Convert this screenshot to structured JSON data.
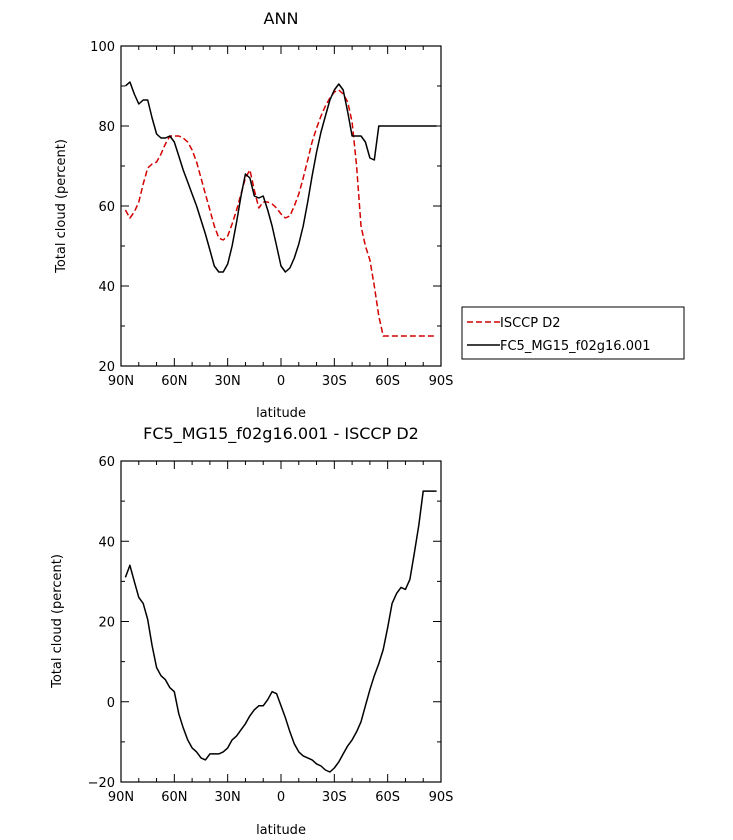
{
  "chart_data": [
    {
      "type": "line",
      "title": "ANN",
      "xlabel": "latitude",
      "ylabel": "Total cloud (percent)",
      "xlim": [
        90,
        -90
      ],
      "ylim": [
        20,
        100
      ],
      "xticks": [
        90,
        60,
        30,
        0,
        -30,
        -60,
        -90
      ],
      "xtick_labels": [
        "90N",
        "60N",
        "30N",
        "0",
        "30S",
        "60S",
        "90S"
      ],
      "yticks": [
        20,
        40,
        60,
        80,
        100
      ],
      "legend": {
        "placement": "right-outside"
      },
      "series": [
        {
          "name": "ISCCP D2",
          "color": "#d40000",
          "dash": true,
          "x": [
            87.5,
            85,
            82.5,
            80,
            77.5,
            75,
            72.5,
            70,
            67.5,
            65,
            62.5,
            60,
            57.5,
            55,
            52.5,
            50,
            47.5,
            45,
            42.5,
            40,
            37.5,
            35,
            32.5,
            30,
            27.5,
            25,
            22.5,
            20,
            17.5,
            15,
            12.5,
            10,
            7.5,
            5,
            2.5,
            0,
            -2.5,
            -5,
            -7.5,
            -10,
            -12.5,
            -15,
            -17.5,
            -20,
            -22.5,
            -25,
            -27.5,
            -30,
            -32.5,
            -35,
            -37.5,
            -40,
            -42.5,
            -45,
            -47.5,
            -50,
            -52.5,
            -55,
            -57.5,
            -60,
            -62.5,
            -65,
            -67.5,
            -70,
            -72.5,
            -75,
            -77.5,
            -80,
            -82.5,
            -85,
            -87.5
          ],
          "values": [
            59,
            57,
            58.5,
            61,
            65.5,
            69.5,
            70.5,
            71,
            73,
            75.5,
            77.5,
            77.5,
            77.5,
            77,
            76,
            74,
            71,
            67,
            63,
            59,
            55,
            52,
            51.5,
            52.5,
            55.5,
            59,
            63,
            67,
            69,
            64,
            59.5,
            61,
            61,
            60.5,
            59.5,
            58,
            57,
            57.5,
            60,
            63,
            67,
            71.5,
            76,
            79.5,
            82.5,
            85,
            87,
            88.5,
            89,
            88,
            86,
            81,
            70,
            55,
            50,
            46.5,
            40,
            32.5,
            27.5,
            27.5,
            27.5,
            27.5,
            27.5,
            27.5,
            27.5,
            27.5,
            27.5,
            27.5,
            27.5,
            27.5,
            27.5
          ]
        },
        {
          "name": "FC5_MG15_f02g16.001",
          "color": "#000000",
          "dash": false,
          "x": [
            87.5,
            85,
            82.5,
            80,
            77.5,
            75,
            72.5,
            70,
            67.5,
            65,
            62.5,
            60,
            57.5,
            55,
            52.5,
            50,
            47.5,
            45,
            42.5,
            40,
            37.5,
            35,
            32.5,
            30,
            27.5,
            25,
            22.5,
            20,
            17.5,
            15,
            12.5,
            10,
            7.5,
            5,
            2.5,
            0,
            -2.5,
            -5,
            -7.5,
            -10,
            -12.5,
            -15,
            -17.5,
            -20,
            -22.5,
            -25,
            -27.5,
            -30,
            -32.5,
            -35,
            -37.5,
            -40,
            -42.5,
            -45,
            -47.5,
            -50,
            -52.5,
            -55,
            -57.5,
            -60,
            -62.5,
            -65,
            -67.5,
            -70,
            -72.5,
            -75,
            -77.5,
            -80,
            -82.5,
            -85,
            -87.5
          ],
          "values": [
            90,
            91,
            88,
            85.5,
            86.5,
            86.5,
            82,
            78,
            77,
            77,
            77.5,
            76,
            72.5,
            69,
            66,
            63,
            60,
            56.5,
            53,
            49,
            45,
            43.5,
            43.5,
            45.5,
            50,
            56,
            62.5,
            68,
            67,
            62.5,
            62,
            62.5,
            59,
            55,
            50,
            45,
            43.5,
            44.5,
            47,
            50.5,
            55,
            61,
            67.5,
            73.5,
            78.5,
            82.5,
            86.5,
            89,
            90.5,
            89,
            83.5,
            77.5,
            77.5,
            77.5,
            76,
            72,
            71.5,
            80,
            80,
            80,
            80,
            80,
            80,
            80,
            80,
            80,
            80,
            80,
            80,
            80,
            80
          ]
        }
      ]
    },
    {
      "type": "line",
      "title": "FC5_MG15_f02g16.001 - ISCCP D2",
      "xlabel": "latitude",
      "ylabel": "Total cloud (percent)",
      "xlim": [
        90,
        -90
      ],
      "ylim": [
        -20,
        60
      ],
      "xticks": [
        90,
        60,
        30,
        0,
        -30,
        -60,
        -90
      ],
      "xtick_labels": [
        "90N",
        "60N",
        "30N",
        "0",
        "30S",
        "60S",
        "90S"
      ],
      "yticks": [
        -20,
        0,
        20,
        40,
        60
      ],
      "series": [
        {
          "color": "#000000",
          "dash": false,
          "x": [
            87.5,
            85,
            82.5,
            80,
            77.5,
            75,
            72.5,
            70,
            67.5,
            65,
            62.5,
            60,
            57.5,
            55,
            52.5,
            50,
            47.5,
            45,
            42.5,
            40,
            37.5,
            35,
            32.5,
            30,
            27.5,
            25,
            22.5,
            20,
            17.5,
            15,
            12.5,
            10,
            7.5,
            5,
            2.5,
            0,
            -2.5,
            -5,
            -7.5,
            -10,
            -12.5,
            -15,
            -17.5,
            -20,
            -22.5,
            -25,
            -27.5,
            -30,
            -32.5,
            -35,
            -37.5,
            -40,
            -42.5,
            -45,
            -47.5,
            -50,
            -52.5,
            -55,
            -57.5,
            -60,
            -62.5,
            -65,
            -67.5,
            -70,
            -72.5,
            -75,
            -77.5,
            -80,
            -82.5,
            -85,
            -87.5
          ],
          "values": [
            31,
            34,
            30,
            26,
            24.5,
            20.5,
            14,
            8.5,
            6.5,
            5.5,
            3.5,
            2.5,
            -3,
            -6.5,
            -9.5,
            -11.5,
            -12.5,
            -14,
            -14.5,
            -13,
            -13,
            -13,
            -12.5,
            -11.5,
            -9.5,
            -8.5,
            -7,
            -5.5,
            -3.5,
            -2,
            -1,
            -1,
            0.5,
            2.5,
            2,
            -1,
            -4,
            -7.5,
            -10.5,
            -12.5,
            -13.5,
            -14,
            -14.5,
            -15.5,
            -16,
            -17,
            -17.5,
            -16.5,
            -15,
            -13,
            -11,
            -9.5,
            -7.5,
            -5,
            -1,
            3,
            6.5,
            9.5,
            13,
            18.5,
            24.5,
            27,
            28.5,
            28,
            30.5,
            37,
            44,
            52.5,
            52.5,
            52.5,
            52.5
          ]
        }
      ]
    }
  ]
}
